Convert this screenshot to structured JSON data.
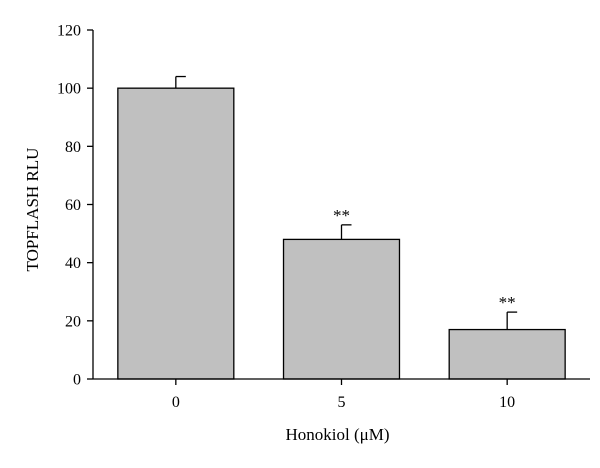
{
  "chart_data": {
    "type": "bar",
    "title": "",
    "xlabel": "Honokiol (μM)",
    "ylabel": "TOPFLASH RLU",
    "categories": [
      "0",
      "5",
      "10"
    ],
    "values": [
      100,
      48,
      17
    ],
    "error_bars": [
      4,
      5,
      6
    ],
    "significance": [
      "",
      "**",
      "**"
    ],
    "ylim": [
      0,
      120
    ],
    "yticks": [
      0,
      20,
      40,
      60,
      80,
      100,
      120
    ],
    "grid": false,
    "bar_color": "#c0c0c0",
    "edge_color": "#000000"
  }
}
